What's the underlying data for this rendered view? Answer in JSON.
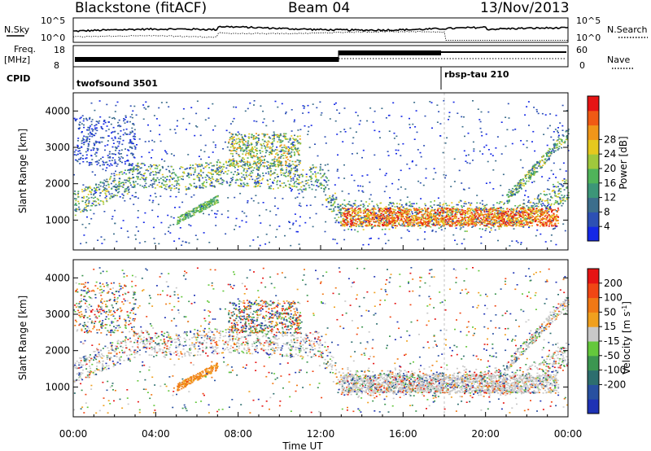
{
  "header": {
    "station": "Blackstone (fitACF)",
    "beam": "Beam 04",
    "date": "13/Nov/2013"
  },
  "top_panels": {
    "nsky_label": "N.Sky",
    "nsky_ticks": [
      "10^5",
      "10^0"
    ],
    "nsearch_label": "N.Search",
    "nsearch_ticks": [
      "10^5",
      "10^0"
    ],
    "freq_label_1": "Freq.",
    "freq_label_2": "[MHz]",
    "freq_ticks": [
      "18",
      "8"
    ],
    "nave_label": "Nave",
    "nave_ticks": [
      "60",
      "0"
    ],
    "cpid_label": "CPID",
    "cpid_segments": [
      {
        "name": "twofsound 3501",
        "start_hour": 0
      },
      {
        "name": "rbsp-tau 210",
        "start_hour": 18
      }
    ]
  },
  "chart_data": [
    {
      "type": "heatmap",
      "name": "power-panel",
      "xlabel": "",
      "ylabel": "Slant Range [km]",
      "xlim": [
        0,
        24
      ],
      "ylim": [
        180,
        4500
      ],
      "yticks": [
        "1000",
        "2000",
        "3000",
        "4000"
      ],
      "colorbar": {
        "label": "Power [dB]",
        "ticks": [
          "4",
          "8",
          "12",
          "16",
          "20",
          "24",
          "28"
        ],
        "colors": [
          "#1428e6",
          "#2d50b4",
          "#3c6e8c",
          "#3c9678",
          "#50b45a",
          "#a0c83c",
          "#e6c81e",
          "#f09619",
          "#f05a14",
          "#e61414"
        ]
      }
    },
    {
      "type": "heatmap",
      "name": "velocity-panel",
      "xlabel": "Time UT",
      "ylabel": "Slant Range [km]",
      "xlim": [
        0,
        24
      ],
      "ylim": [
        180,
        4500
      ],
      "xticks": [
        "00:00",
        "04:00",
        "08:00",
        "12:00",
        "16:00",
        "20:00",
        "00:00"
      ],
      "yticks": [
        "1000",
        "2000",
        "3000",
        "4000"
      ],
      "colorbar": {
        "label": "Velocity [m s",
        "label_sup": "-1",
        "label_end": "]",
        "ticks": [
          "200",
          "100",
          "50",
          "15",
          "-15",
          "-50",
          "-100",
          "-200"
        ],
        "colors": [
          "#1e32b4",
          "#2850a0",
          "#2d6e6e",
          "#3c9650",
          "#64c83c",
          "#c8c8c8",
          "#f0a01e",
          "#f07814",
          "#f04614",
          "#e61414"
        ]
      }
    }
  ]
}
